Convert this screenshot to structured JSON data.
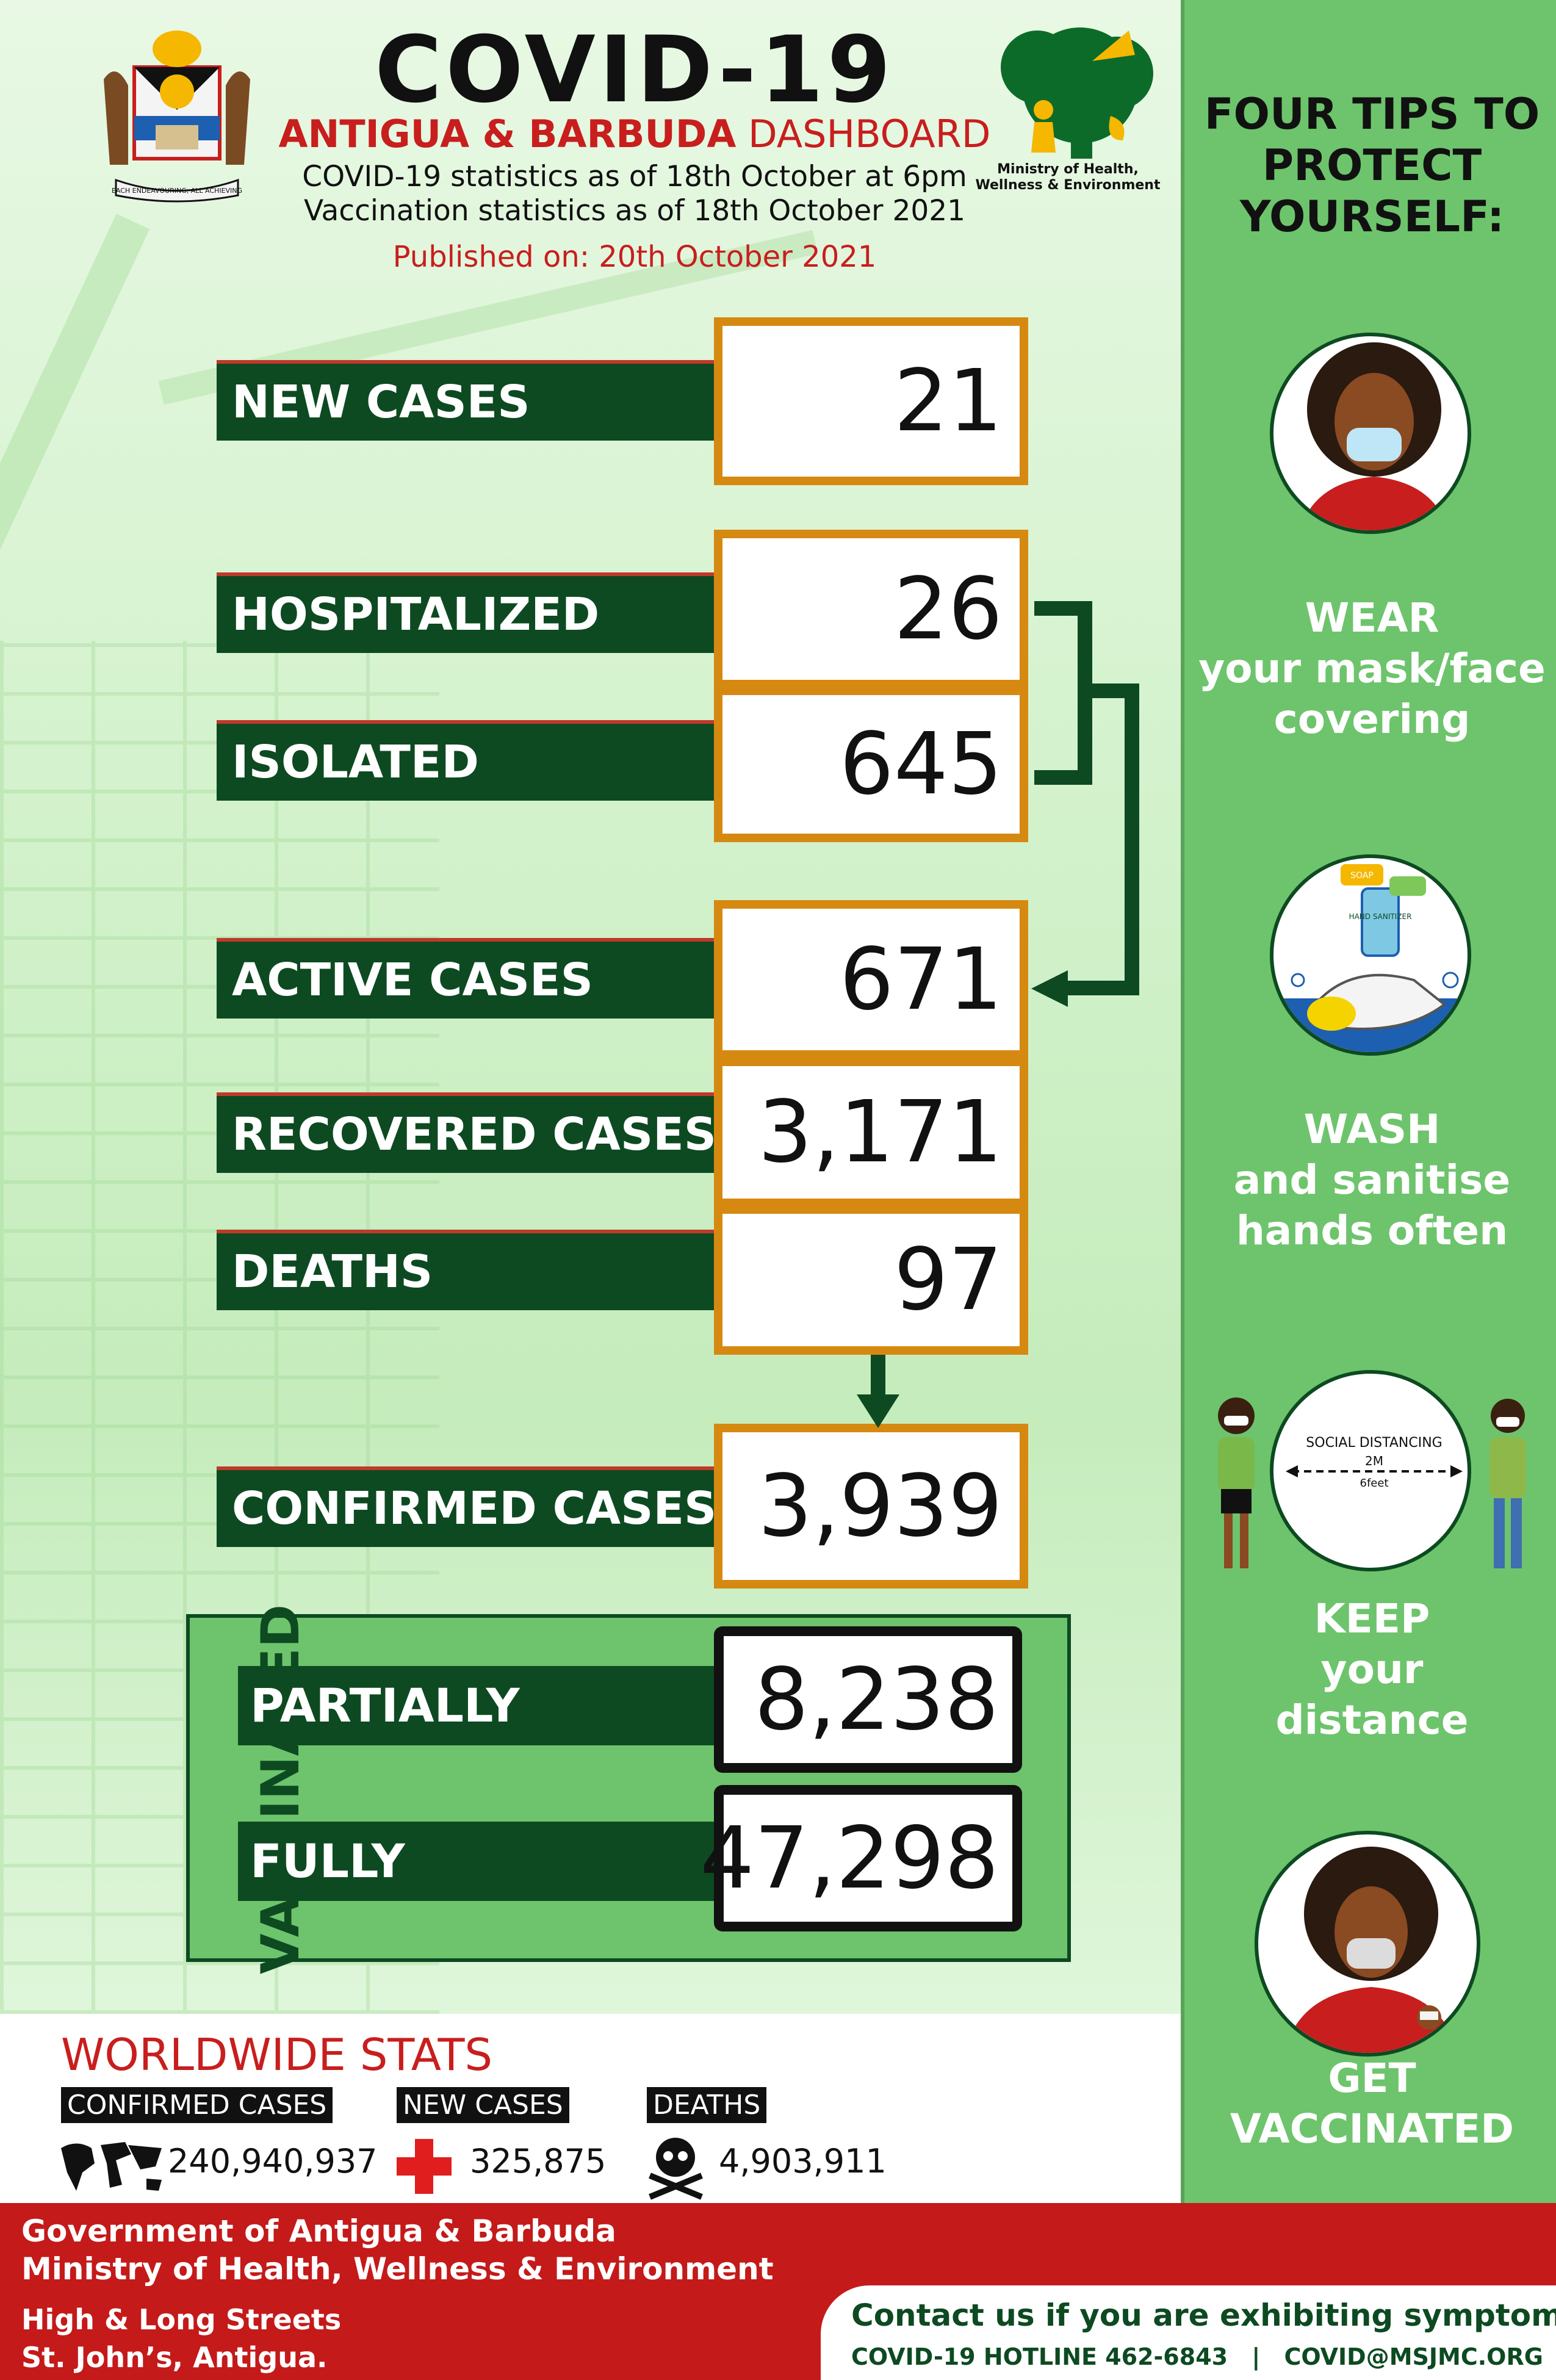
{
  "header": {
    "title": "COVID-19",
    "subtitle_bold": "ANTIGUA & BARBUDA",
    "subtitle_rest": " DASHBOARD",
    "stats_line": "COVID-19 statistics as of 18th October at 6pm",
    "vacc_line": "Vaccination statistics as of 18th October 2021",
    "published": "Published on: 20th October 2021",
    "coat_motto": "EACH ENDEAVOURING, ALL ACHIEVING",
    "ministry_caption": "Ministry of Health, Wellness & Environment"
  },
  "stats": {
    "new_cases": {
      "label": "NEW CASES",
      "value": "21"
    },
    "hospitalized": {
      "label": "HOSPITALIZED",
      "value": "26"
    },
    "isolated": {
      "label": "ISOLATED",
      "value": "645"
    },
    "active": {
      "label": "ACTIVE CASES",
      "value": "671"
    },
    "recovered": {
      "label": "RECOVERED CASES",
      "value": "3,171"
    },
    "deaths": {
      "label": "DEATHS",
      "value": "97"
    },
    "confirmed": {
      "label": "CONFIRMED CASES",
      "value": "3,939"
    }
  },
  "vaccinated": {
    "label": "VACCINATED",
    "partially": {
      "label": "PARTIALLY",
      "value": "8,238"
    },
    "fully": {
      "label": "FULLY",
      "value": "47,298"
    }
  },
  "tips": {
    "title": "FOUR TIPS TO PROTECT YOURSELF:",
    "mask": {
      "line1": "WEAR",
      "line2": "your mask/face",
      "line3": "covering"
    },
    "wash": {
      "line1": "WASH",
      "line2": "and sanitise",
      "line3": "hands often",
      "soap": "SOAP",
      "sanitizer": "HAND SANITIZER"
    },
    "distance": {
      "line1": "KEEP",
      "line2": "your",
      "line3": "distance",
      "sign": "SOCIAL DISTANCING",
      "m": "2M",
      "feet": "6feet"
    },
    "vaccinate": {
      "line1": "GET",
      "line2": "VACCINATED"
    }
  },
  "worldwide": {
    "title": "WORLDWIDE STATS",
    "confirmed_label": "CONFIRMED CASES",
    "confirmed_value": "240,940,937",
    "new_label": "NEW CASES",
    "new_value": "325,875",
    "deaths_label": "DEATHS",
    "deaths_value": "4,903,911"
  },
  "footer": {
    "gov": "Government of Antigua & Barbuda",
    "ministry": "Ministry of Health, Wellness & Environment",
    "address1": "High & Long Streets",
    "address2": "St. John’s, Antigua.",
    "contact": "Contact us if you are exhibiting symptoms",
    "hotline": "COVID-19 HOTLINE 462-6843",
    "separator": "|",
    "email": "COVID@MSJMC.ORG"
  },
  "colors": {
    "dark_green": "#0d4a21",
    "orange_border": "#d68910",
    "red": "#c81e1e",
    "panel_green": "#6dc46c"
  }
}
